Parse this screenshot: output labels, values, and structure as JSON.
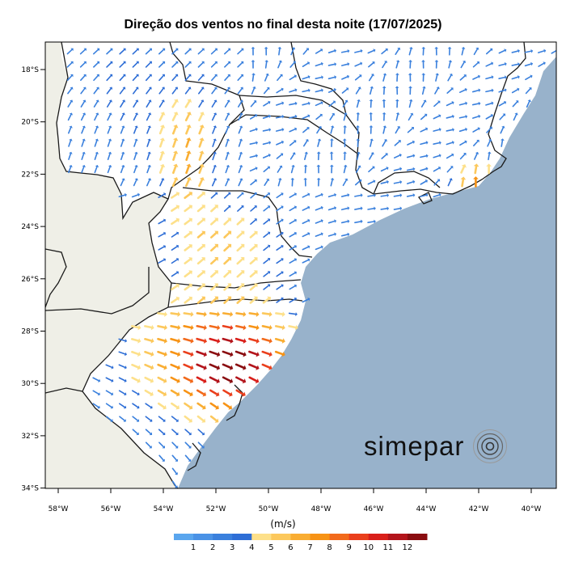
{
  "title": "Direção dos ventos no final desta noite (17/07/2025)",
  "brand": {
    "name": "simepar",
    "logo_icon": "concentric-circles-icon"
  },
  "colors": {
    "ocean": "#98b2cb",
    "land_outside": "#efefe7",
    "land_inside": "#ffffff",
    "border": "#1a1a1a"
  },
  "map": {
    "lat_ticks": [
      "18°S",
      "20°S",
      "22°S",
      "24°S",
      "26°S",
      "28°S",
      "30°S",
      "32°S",
      "34°S"
    ],
    "lon_ticks": [
      "58°W",
      "56°W",
      "54°W",
      "52°W",
      "50°W",
      "48°W",
      "46°W",
      "44°W",
      "42°W",
      "40°W"
    ],
    "lon_range": [
      -58.5,
      -39.1
    ],
    "lat_range": [
      -34,
      -17
    ]
  },
  "legend": {
    "units": "(m/s)",
    "ticks": [
      "1",
      "2",
      "3",
      "4",
      "5",
      "6",
      "7",
      "8",
      "9",
      "10",
      "11",
      "12"
    ],
    "colors": [
      "#5aa6ee",
      "#4a92e6",
      "#3a80dd",
      "#2e6ed6",
      "#fde08a",
      "#fcc85c",
      "#f9ad32",
      "#f79315",
      "#f26a1b",
      "#ea3f1c",
      "#d91f1a",
      "#b3141b",
      "#8a0d10"
    ]
  }
}
